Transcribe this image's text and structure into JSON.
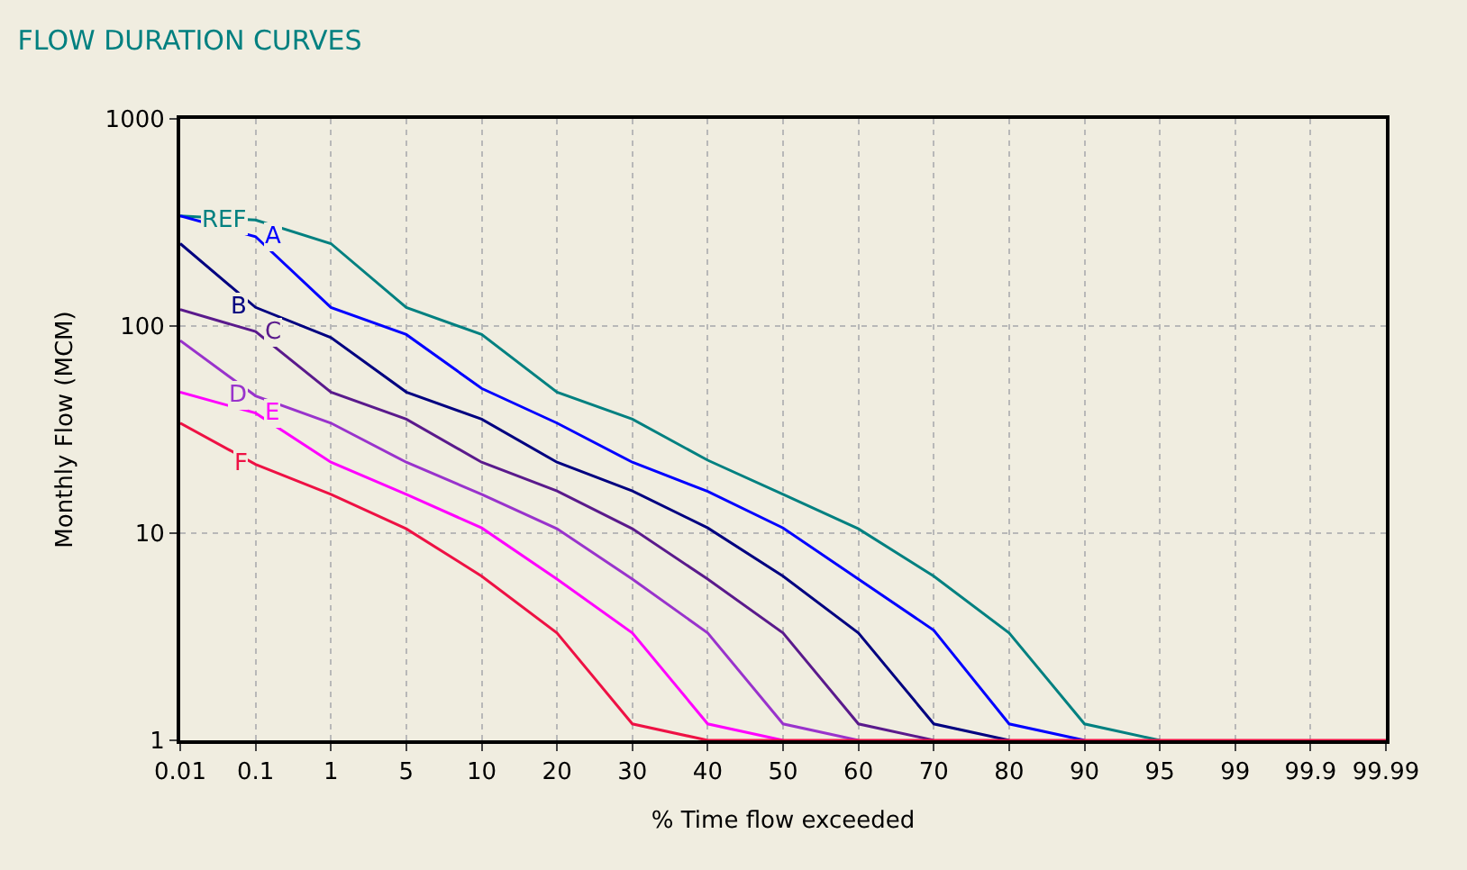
{
  "chart_data": {
    "type": "line",
    "title": "FLOW DURATION CURVES",
    "xlabel": "% Time flow exceeded",
    "ylabel": "Monthly Flow (MCM)",
    "categories": [
      "0.01",
      "0.1",
      "1",
      "5",
      "10",
      "20",
      "30",
      "40",
      "50",
      "60",
      "70",
      "80",
      "90",
      "95",
      "99",
      "99.9",
      "99.99"
    ],
    "series": [
      {
        "name": "REF",
        "color": "#008080",
        "values": [
          340,
          325,
          250,
          123,
          91,
          48,
          35.5,
          22.5,
          15.4,
          10.5,
          6.2,
          3.3,
          1.2,
          1,
          null,
          null,
          null
        ]
      },
      {
        "name": "A",
        "color": "#0000ff",
        "values": [
          340,
          270,
          123,
          91,
          50,
          34,
          22,
          15.9,
          10.6,
          6,
          3.4,
          1.2,
          1,
          null,
          null,
          null,
          null
        ]
      },
      {
        "name": "B",
        "color": "#000080",
        "values": [
          250,
          123,
          88,
          48,
          35.5,
          22,
          16,
          10.6,
          6.2,
          3.3,
          1.2,
          1,
          null,
          null,
          null,
          null,
          null
        ]
      },
      {
        "name": "C",
        "color": "#5a1a8c",
        "values": [
          120,
          94,
          48,
          35.5,
          22,
          16,
          10.5,
          6,
          3.3,
          1.2,
          1,
          null,
          null,
          null,
          null,
          null,
          null
        ]
      },
      {
        "name": "D",
        "color": "#9933cc",
        "values": [
          85,
          46,
          34,
          22,
          15.4,
          10.5,
          6,
          3.3,
          1.2,
          1,
          null,
          null,
          null,
          null,
          null,
          null,
          null
        ]
      },
      {
        "name": "E",
        "color": "#ff00ff",
        "values": [
          48,
          38,
          22,
          15.4,
          10.6,
          6,
          3.3,
          1.2,
          1,
          null,
          null,
          null,
          null,
          null,
          null,
          null,
          null
        ]
      },
      {
        "name": "F",
        "color": "#ee1144",
        "values": [
          34,
          21.5,
          15.4,
          10.5,
          6.2,
          3.3,
          1.2,
          1,
          1,
          1,
          1,
          1,
          1,
          1,
          1,
          1,
          1
        ]
      }
    ],
    "log": "y",
    "ylim": [
      1,
      1000
    ],
    "yticks": [
      1,
      10,
      100,
      1000
    ],
    "grid": true,
    "legend": false,
    "marker": "none",
    "line_style": "solid"
  }
}
